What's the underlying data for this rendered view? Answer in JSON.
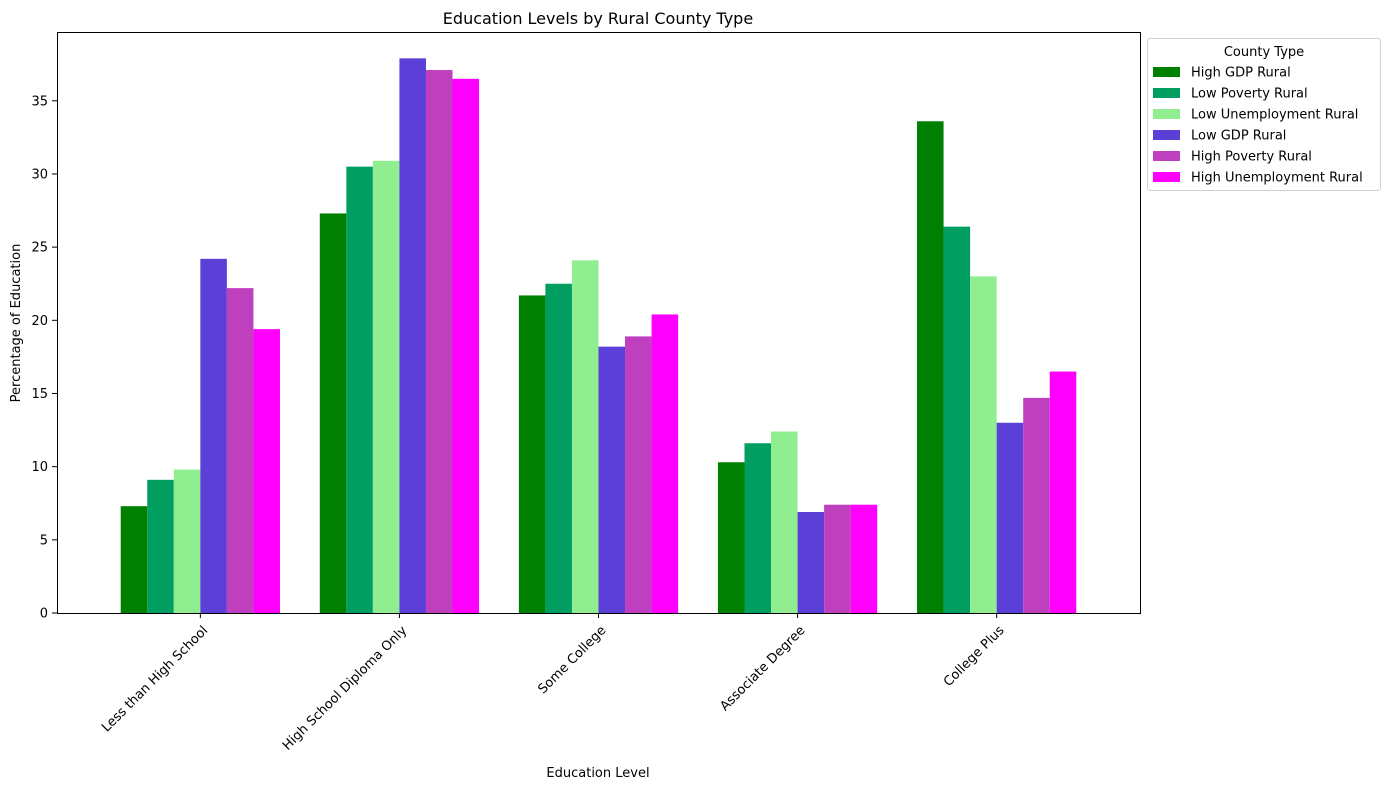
{
  "chart_data": {
    "type": "bar",
    "title": "Education Levels by Rural County Type",
    "xlabel": "Education Level",
    "ylabel": "Percentage of Education",
    "ylim": [
      0,
      39.7
    ],
    "yticks": [
      0,
      5,
      10,
      15,
      20,
      25,
      30,
      35
    ],
    "grid": false,
    "legend": {
      "title": "County Type",
      "placement": "outside-top-right"
    },
    "categories": [
      "Less than High School",
      "High School Diploma Only",
      "Some College",
      "Associate Degree",
      "College Plus"
    ],
    "series": [
      {
        "name": "High GDP Rural",
        "color": "#008000",
        "values": [
          7.3,
          27.3,
          21.7,
          10.3,
          33.6
        ]
      },
      {
        "name": "Low Poverty Rural",
        "color": "#009e60",
        "values": [
          9.1,
          30.5,
          22.5,
          11.6,
          26.4
        ]
      },
      {
        "name": "Low Unemployment Rural",
        "color": "#90ee90",
        "values": [
          9.8,
          30.9,
          24.1,
          12.4,
          23.0
        ]
      },
      {
        "name": "Low GDP Rural",
        "color": "#5b3fd6",
        "values": [
          24.2,
          37.9,
          18.2,
          6.9,
          13.0
        ]
      },
      {
        "name": "High Poverty Rural",
        "color": "#bf40bf",
        "values": [
          22.2,
          37.1,
          18.9,
          7.4,
          14.7
        ]
      },
      {
        "name": "High Unemployment Rural",
        "color": "#ff00ff",
        "values": [
          19.4,
          36.5,
          20.4,
          7.4,
          16.5
        ]
      }
    ]
  }
}
